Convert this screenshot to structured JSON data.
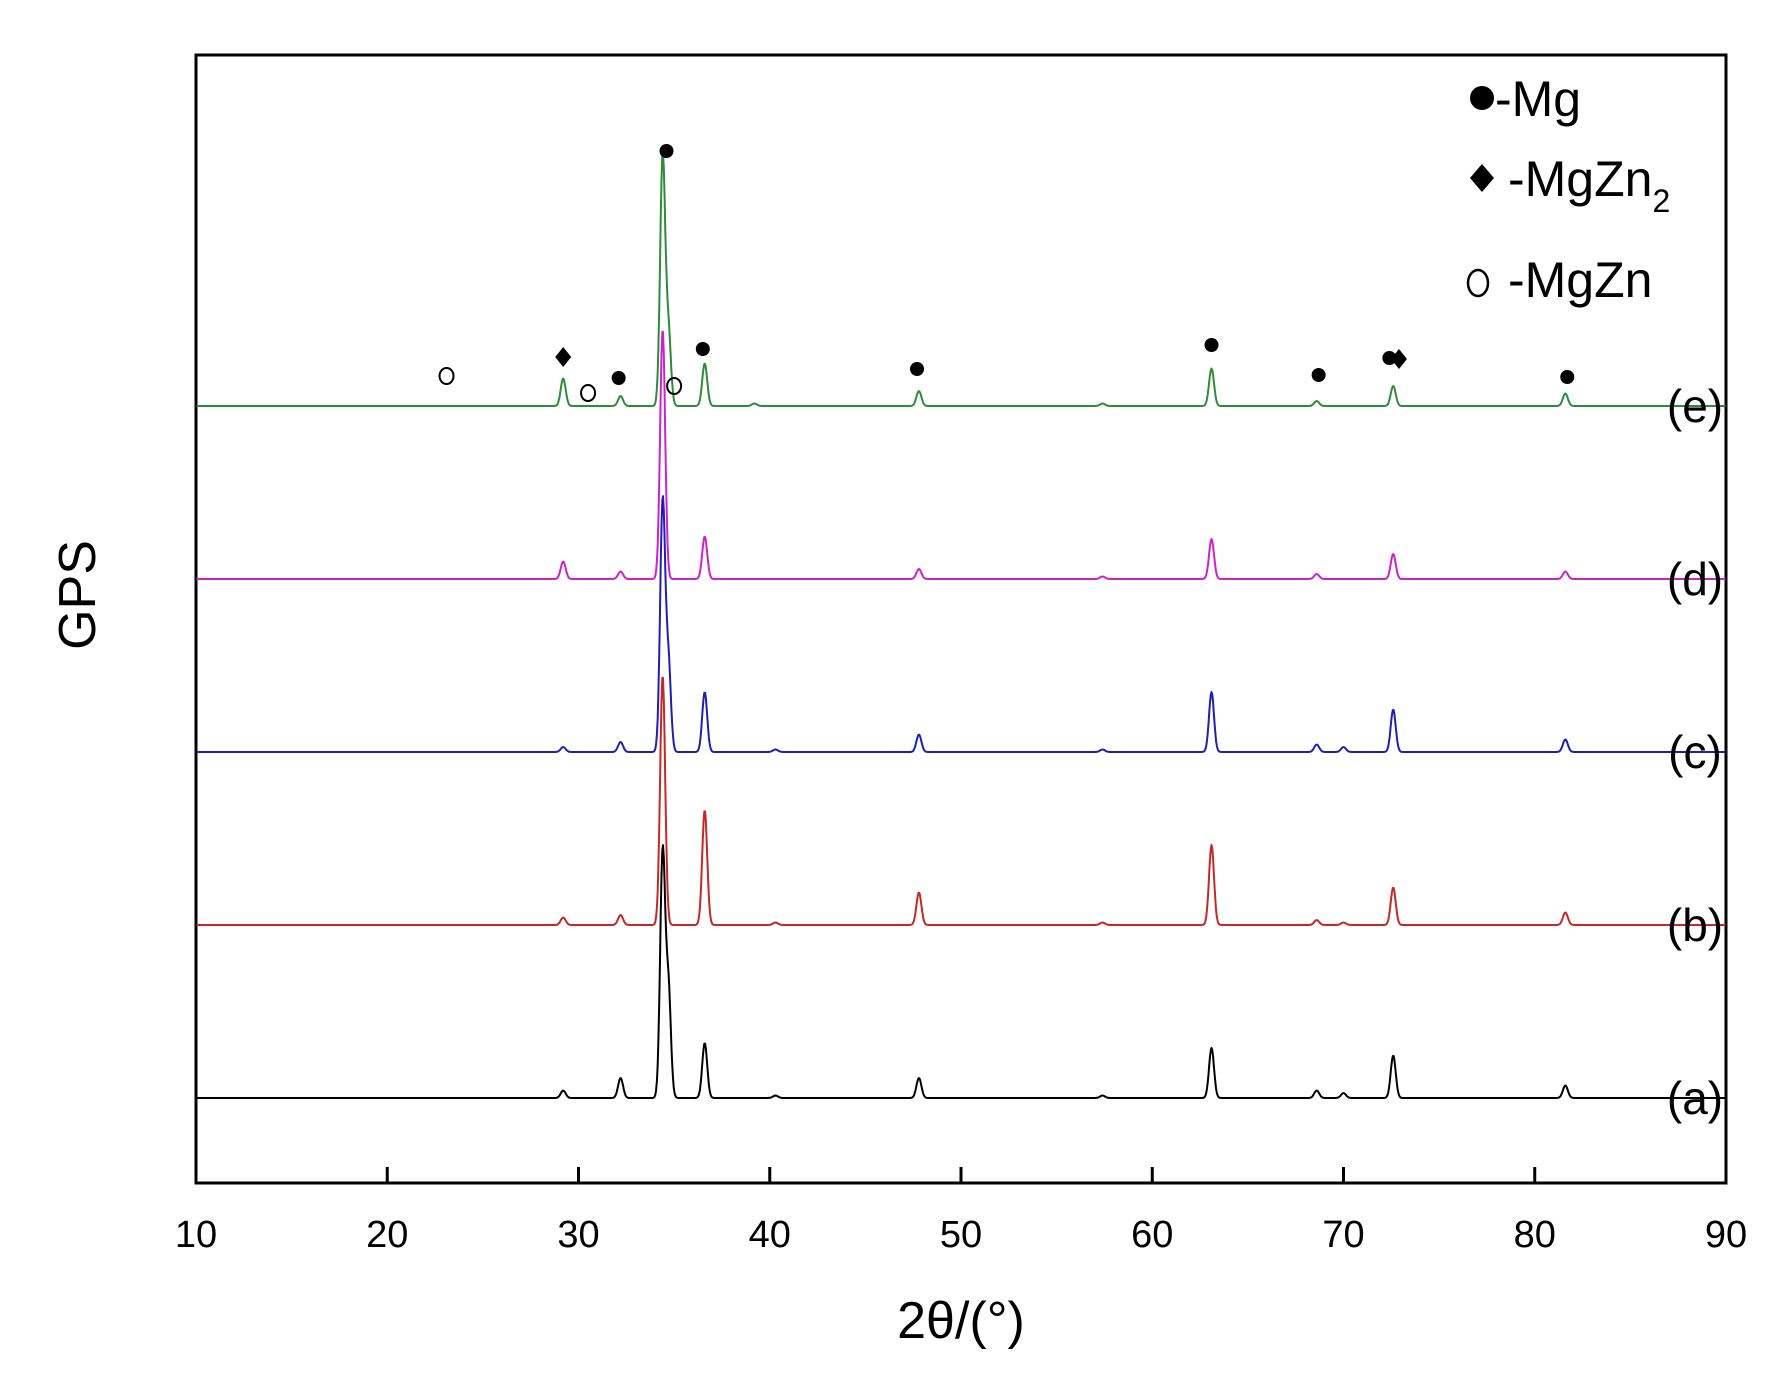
{
  "chart_data": {
    "type": "line",
    "xlabel": "2θ/(°)",
    "ylabel": "GPS",
    "xlim": [
      10,
      90
    ],
    "xticks": [
      10,
      20,
      30,
      40,
      50,
      60,
      70,
      80,
      90
    ],
    "grid": false,
    "legend_position": "top-right",
    "legend": [
      {
        "marker": "filled-circle",
        "text": "-Mg",
        "sub": ""
      },
      {
        "marker": "filled-diamond",
        "text": "-MgZn",
        "sub": "2"
      },
      {
        "marker": "open-circle",
        "text": "-MgZn",
        "sub": ""
      }
    ],
    "series": [
      {
        "name": "(a)",
        "color": "#000000",
        "peaks": [
          [
            29.2,
            0.03
          ],
          [
            32.2,
            0.08
          ],
          [
            34.4,
            0.98
          ],
          [
            34.7,
            0.44
          ],
          [
            36.6,
            0.22
          ],
          [
            40.3,
            0.01
          ],
          [
            47.8,
            0.08
          ],
          [
            57.4,
            0.01
          ],
          [
            63.1,
            0.2
          ],
          [
            68.6,
            0.03
          ],
          [
            70.0,
            0.02
          ],
          [
            72.6,
            0.17
          ],
          [
            81.6,
            0.05
          ]
        ]
      },
      {
        "name": "(b)",
        "color": "#c62828",
        "peaks": [
          [
            29.2,
            0.03
          ],
          [
            32.2,
            0.04
          ],
          [
            34.4,
            1.0
          ],
          [
            36.6,
            0.46
          ],
          [
            40.3,
            0.01
          ],
          [
            47.8,
            0.13
          ],
          [
            57.4,
            0.01
          ],
          [
            63.1,
            0.32
          ],
          [
            68.6,
            0.02
          ],
          [
            70.0,
            0.01
          ],
          [
            72.6,
            0.15
          ],
          [
            81.6,
            0.05
          ]
        ]
      },
      {
        "name": "(c)",
        "color": "#1f1fb4",
        "peaks": [
          [
            29.2,
            0.02
          ],
          [
            32.2,
            0.04
          ],
          [
            34.4,
            1.0
          ],
          [
            34.7,
            0.36
          ],
          [
            36.6,
            0.24
          ],
          [
            40.3,
            0.01
          ],
          [
            47.8,
            0.07
          ],
          [
            57.4,
            0.01
          ],
          [
            63.1,
            0.24
          ],
          [
            68.6,
            0.03
          ],
          [
            70.0,
            0.02
          ],
          [
            72.6,
            0.17
          ],
          [
            81.6,
            0.05
          ]
        ]
      },
      {
        "name": "(d)",
        "color": "#cc22cc",
        "peaks": [
          [
            29.2,
            0.07
          ],
          [
            32.2,
            0.03
          ],
          [
            34.4,
            1.0
          ],
          [
            36.6,
            0.17
          ],
          [
            47.8,
            0.04
          ],
          [
            57.4,
            0.01
          ],
          [
            63.1,
            0.16
          ],
          [
            68.6,
            0.02
          ],
          [
            72.6,
            0.1
          ],
          [
            81.6,
            0.03
          ]
        ]
      },
      {
        "name": "(e)",
        "color": "#2e8b3a",
        "peaks": [
          [
            29.2,
            0.11
          ],
          [
            32.2,
            0.04
          ],
          [
            34.4,
            1.0
          ],
          [
            34.7,
            0.3
          ],
          [
            36.6,
            0.17
          ],
          [
            39.2,
            0.01
          ],
          [
            47.8,
            0.06
          ],
          [
            57.4,
            0.01
          ],
          [
            63.1,
            0.15
          ],
          [
            68.6,
            0.02
          ],
          [
            72.6,
            0.08
          ],
          [
            81.6,
            0.05
          ]
        ]
      }
    ],
    "annotations": [
      {
        "type": "open-circle",
        "x": 23.1
      },
      {
        "type": "filled-diamond",
        "x": 29.2
      },
      {
        "type": "open-circle",
        "x": 30.5
      },
      {
        "type": "filled-circle",
        "x": 32.1
      },
      {
        "type": "filled-circle",
        "x": 34.6
      },
      {
        "type": "open-circle",
        "x": 35.0
      },
      {
        "type": "filled-circle",
        "x": 36.5
      },
      {
        "type": "filled-circle",
        "x": 47.7
      },
      {
        "type": "filled-circle",
        "x": 63.1
      },
      {
        "type": "filled-circle",
        "x": 68.7
      },
      {
        "type": "filled-circle",
        "x": 72.4
      },
      {
        "type": "filled-diamond",
        "x": 72.9
      },
      {
        "type": "filled-circle",
        "x": 81.7
      }
    ]
  }
}
